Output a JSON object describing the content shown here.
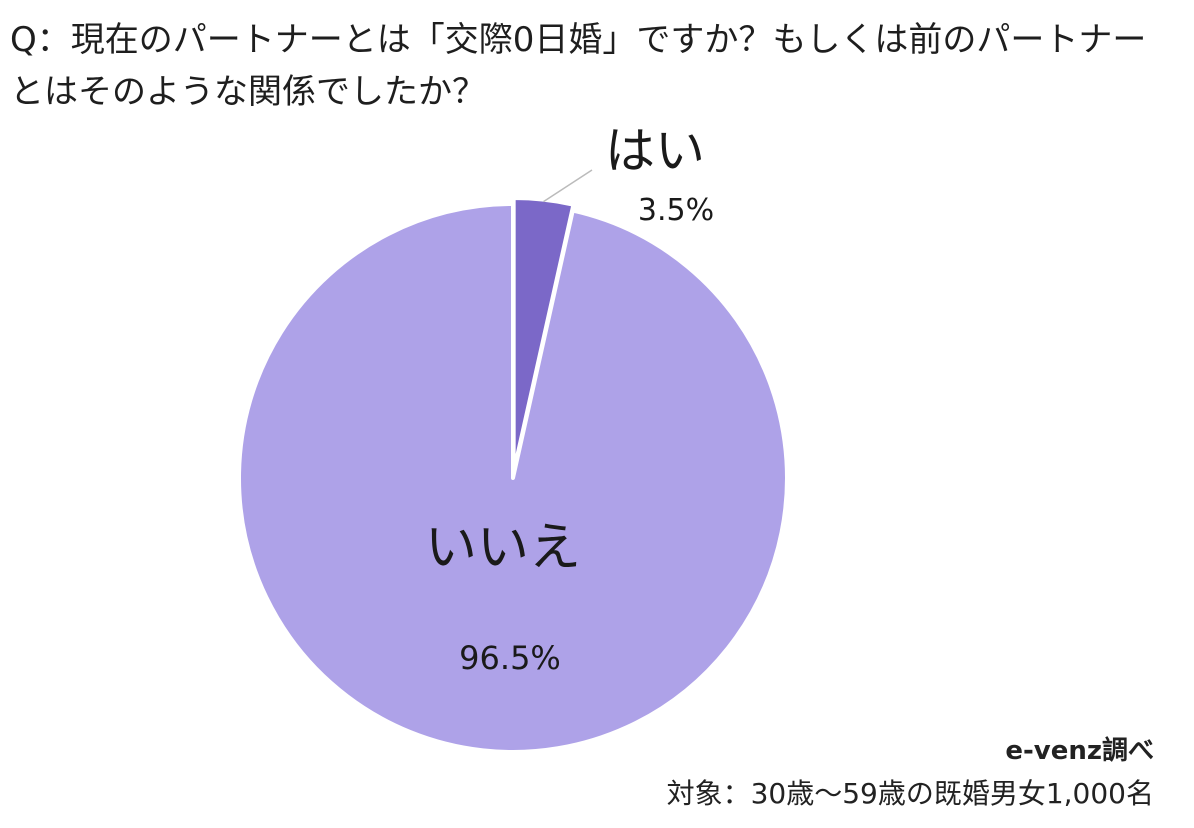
{
  "question": "Q：現在のパートナーとは「交際0日婚」ですか？もしくは前のパートナーとはそのような関係でしたか？",
  "chart_data": {
    "type": "pie",
    "start_angle": "12 o'clock, clockwise",
    "slices": [
      {
        "label": "はい",
        "value": 3.5,
        "value_label": "3.5%",
        "color": "#7b68c8",
        "exploded": true
      },
      {
        "label": "いいえ",
        "value": 96.5,
        "value_label": "96.5%",
        "color": "#aea2e8",
        "exploded": false
      }
    ],
    "legend": "none (labels placed on chart)",
    "leader_line_color": "#bbbbbb"
  },
  "footer": {
    "source": "e-venz調べ",
    "target": "対象：30歳〜59歳の既婚男女1,000名"
  }
}
